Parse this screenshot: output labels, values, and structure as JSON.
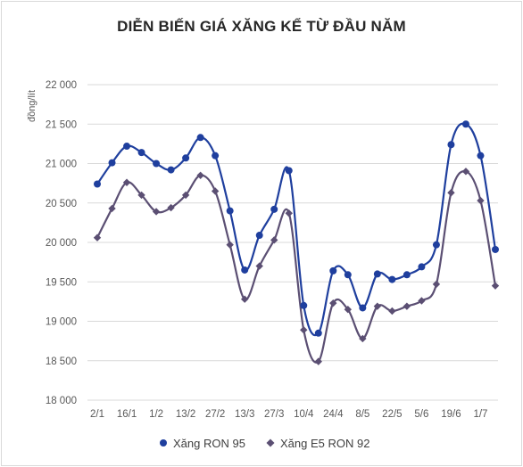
{
  "chart_data": {
    "type": "line",
    "title": "DIỄN BIẾN GIÁ XĂNG KỂ TỪ ĐẦU NĂM",
    "ylabel": "đồng/lít",
    "xlabel": "",
    "ylim": [
      18000,
      22000
    ],
    "yticks": [
      "18 000",
      "18 500",
      "19 000",
      "19 500",
      "20 000",
      "20 500",
      "21 000",
      "21 500",
      "22 000"
    ],
    "ytick_values": [
      18000,
      18500,
      19000,
      19500,
      20000,
      20500,
      21000,
      21500,
      22000
    ],
    "xtick_labels": [
      "2/1",
      "16/1",
      "1/2",
      "13/2",
      "27/2",
      "13/3",
      "27/3",
      "10/4",
      "24/4",
      "8/5",
      "22/5",
      "5/6",
      "19/6",
      "1/7"
    ],
    "grid": "horizontal",
    "legend_position": "bottom",
    "series": [
      {
        "name": "Xăng RON 95",
        "color": "#1f3f9e",
        "marker": "circle",
        "values": [
          20740,
          21010,
          21220,
          21140,
          21000,
          20920,
          21070,
          21330,
          21100,
          20400,
          19650,
          20090,
          20420,
          20910,
          19200,
          18850,
          19640,
          19590,
          19170,
          19600,
          19530,
          19590,
          19690,
          19970,
          21240,
          21500,
          21100,
          19910
        ]
      },
      {
        "name": "Xăng E5 RON 92",
        "color": "#5b4f73",
        "marker": "diamond",
        "values": [
          20060,
          20430,
          20760,
          20600,
          20390,
          20440,
          20600,
          20850,
          20650,
          19970,
          19280,
          19700,
          20030,
          20370,
          18890,
          18490,
          19230,
          19150,
          18780,
          19190,
          19130,
          19190,
          19260,
          19470,
          20630,
          20900,
          20530,
          19450
        ]
      }
    ]
  }
}
